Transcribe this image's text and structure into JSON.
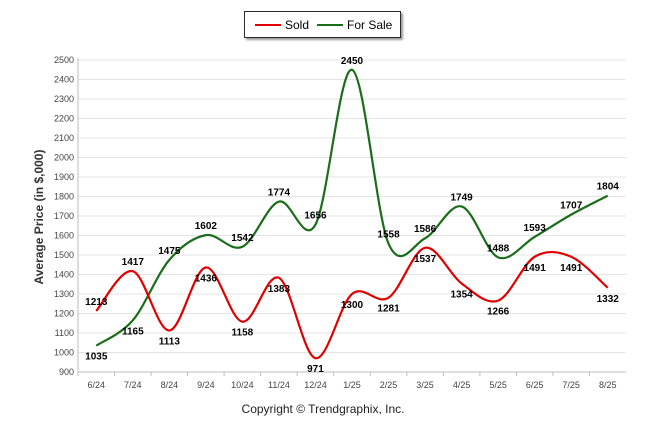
{
  "chart_data": {
    "type": "line",
    "categories": [
      "6/24",
      "7/24",
      "8/24",
      "9/24",
      "10/24",
      "11/24",
      "12/24",
      "1/25",
      "2/25",
      "3/25",
      "4/25",
      "5/25",
      "6/25",
      "7/25",
      "8/25"
    ],
    "series": [
      {
        "name": "Sold",
        "color": "#e00000",
        "values": [
          1213,
          1417,
          1113,
          1436,
          1158,
          1383,
          971,
          1300,
          1281,
          1537,
          1354,
          1266,
          1491,
          1491,
          1332
        ]
      },
      {
        "name": "For Sale",
        "color": "#1a6e1a",
        "values": [
          1035,
          1165,
          1475,
          1602,
          1542,
          1774,
          1656,
          2450,
          1558,
          1586,
          1749,
          1488,
          1593,
          1707,
          1804
        ]
      }
    ],
    "ylabel": "Average Price (in $,000)",
    "ylim": [
      900,
      2500
    ],
    "yticks": [
      "900",
      "1000",
      "1100",
      "1200",
      "1300",
      "1400",
      "1500",
      "1600",
      "1700",
      "1800",
      "1900",
      "2000",
      "2100",
      "2200",
      "2300",
      "2400",
      "2500"
    ],
    "grid": true,
    "legend_position": "top-center"
  },
  "legend": {
    "sold_label": "Sold",
    "for_sale_label": "For Sale"
  },
  "footer": {
    "copyright": "Copyright © Trendgraphix, Inc."
  }
}
